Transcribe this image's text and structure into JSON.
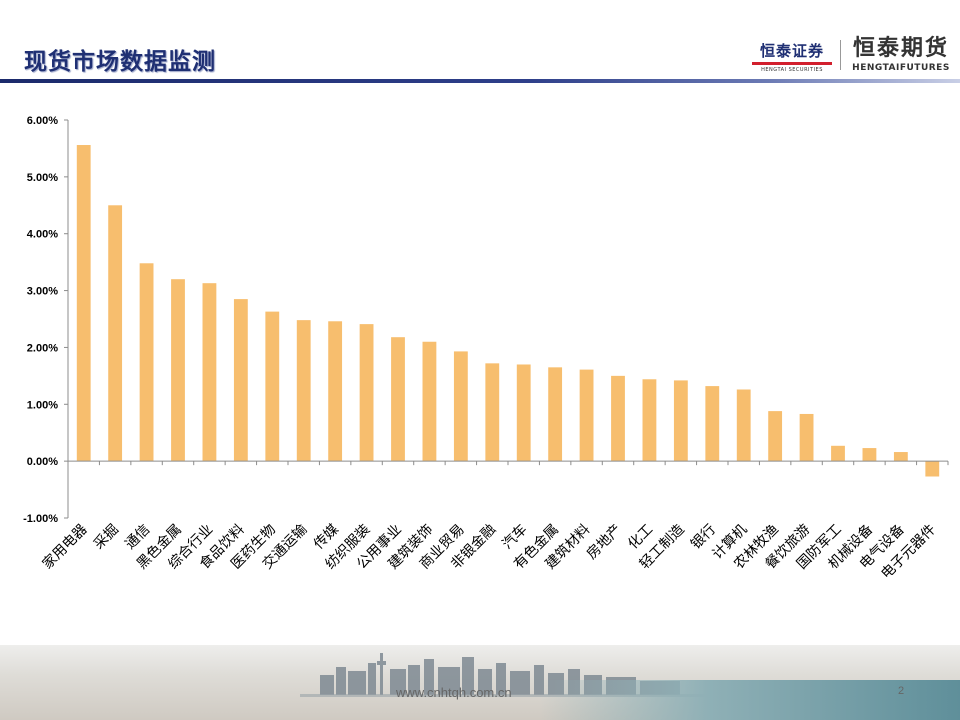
{
  "slide": {
    "title": "现货市场数据监测",
    "website": "www.cnhtqh.com.cn",
    "page_number": "2"
  },
  "logos": {
    "securities_cn": "恒泰证券",
    "securities_en": "HENGTAI SECURITIES",
    "futures_cn": "恒泰期货",
    "futures_en": "HENGTAIFUTURES"
  },
  "colors": {
    "bar": "#F7BE6E",
    "title": "#1F2F73",
    "accent": "#D21F2D"
  },
  "chart_data": {
    "type": "bar",
    "title": "",
    "xlabel": "",
    "ylabel": "",
    "ylim": [
      -0.01,
      0.06
    ],
    "yticks": [
      -0.01,
      0.0,
      0.01,
      0.02,
      0.03,
      0.04,
      0.05,
      0.06
    ],
    "ytick_labels": [
      "-1.00%",
      "0.00%",
      "1.00%",
      "2.00%",
      "3.00%",
      "4.00%",
      "5.00%",
      "6.00%"
    ],
    "grid": false,
    "legend": "none",
    "categories": [
      "家用电器",
      "采掘",
      "通信",
      "黑色金属",
      "综合行业",
      "食品饮料",
      "医药生物",
      "交通运输",
      "传媒",
      "纺织服装",
      "公用事业",
      "建筑装饰",
      "商业贸易",
      "非银金融",
      "汽车",
      "有色金属",
      "建筑材料",
      "房地产",
      "化工",
      "轻工制造",
      "银行",
      "计算机",
      "农林牧渔",
      "餐饮旅游",
      "国防军工",
      "机械设备",
      "电气设备",
      "电子元器件"
    ],
    "values": [
      0.0556,
      0.045,
      0.0348,
      0.032,
      0.0313,
      0.0285,
      0.0263,
      0.0248,
      0.0246,
      0.0241,
      0.0218,
      0.021,
      0.0193,
      0.0172,
      0.017,
      0.0165,
      0.0161,
      0.015,
      0.0144,
      0.0142,
      0.0132,
      0.0126,
      0.0088,
      0.0083,
      0.0027,
      0.0023,
      0.0016,
      -0.0027
    ]
  }
}
